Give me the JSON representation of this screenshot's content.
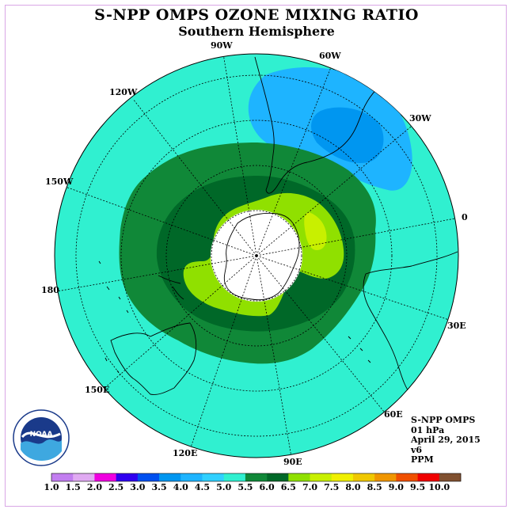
{
  "title": "S-NPP OMPS OZONE MIXING RATIO",
  "subtitle": "Southern Hemisphere",
  "longitude_labels": [
    "90W",
    "60W",
    "120W",
    "30W",
    "150W",
    "0",
    "180",
    "30E",
    "150E",
    "60E",
    "120E",
    "90E"
  ],
  "info": {
    "instrument": "S-NPP OMPS",
    "level": "01 hPa",
    "date": "April 29, 2015",
    "version": "v6",
    "units": "PPM"
  },
  "colorbar": {
    "labels": [
      "1.0",
      "1.5",
      "2.0",
      "2.5",
      "3.0",
      "3.5",
      "4.0",
      "4.5",
      "5.0",
      "5.5",
      "6.0",
      "6.5",
      "7.0",
      "7.5",
      "8.0",
      "8.5",
      "9.0",
      "9.5",
      "10.0"
    ],
    "colors": [
      "#c27ef0",
      "#e0aaf2",
      "#f000e0",
      "#3000f0",
      "#0050f0",
      "#0096f0",
      "#1eb4ff",
      "#30d0ff",
      "#30f0d0",
      "#108838",
      "#006828",
      "#90e000",
      "#c8f000",
      "#f0f000",
      "#f0c800",
      "#f09600",
      "#f05000",
      "#f00000",
      "#805030"
    ]
  },
  "logo": {
    "text": "NOAA",
    "ring_text": "NATIONAL OCEANIC AND ATMOSPHERIC ADMINISTRATION · U.S. DEPARTMENT OF COMMERCE"
  },
  "colors": {
    "background_field": "#30f0d0",
    "hole": "#ffffff",
    "frame": "#d9a6e6"
  }
}
